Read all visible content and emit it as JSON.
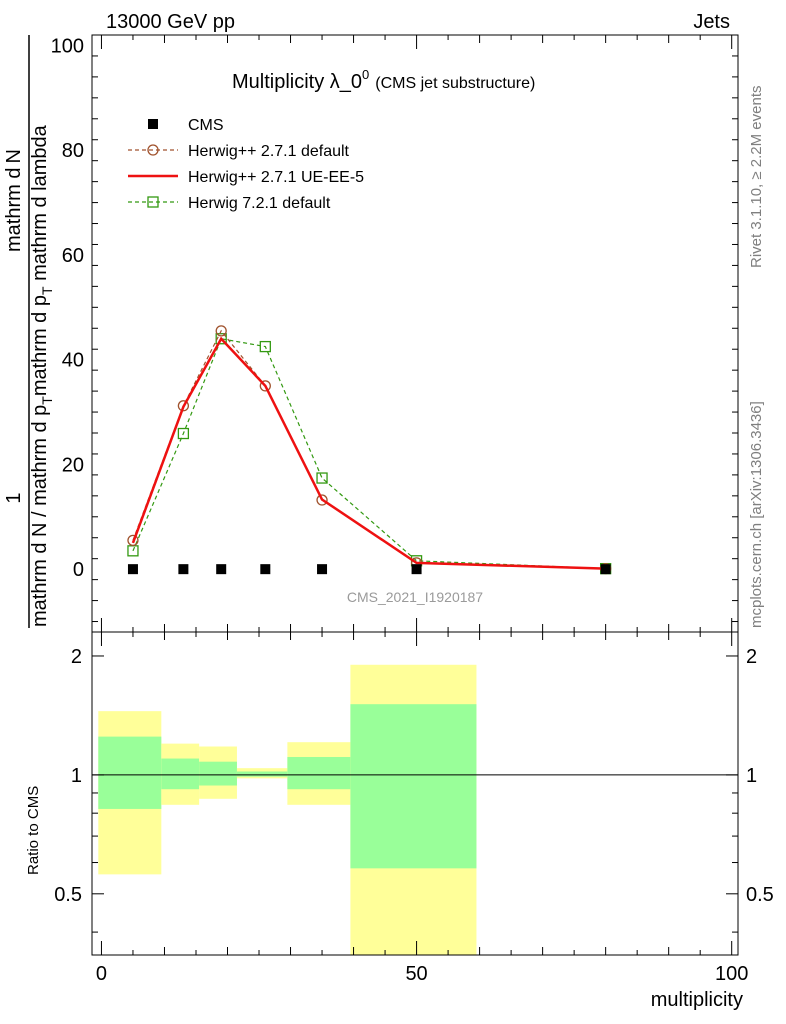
{
  "header": {
    "left": "13000 GeV pp",
    "right": "Jets"
  },
  "side_text": {
    "rivet": "Rivet 3.1.10, ≥ 2.2M events",
    "mcplots": "mcplots.cern.ch [arXiv:1306.3436]"
  },
  "watermark": "CMS_2021_I1920187",
  "chart_data": [
    {
      "type": "line",
      "title": "Multiplicity λ_0",
      "title_superscript": "0",
      "subtitle": "(CMS jet substructure)",
      "ylabel_numerator": "1",
      "ylabel_denominator": "mathrm d N / mathrm d p",
      "ylabel_denominator_sub": "T",
      "ylabel_denominator_tail": "mathrm d p",
      "ylabel_denominator_tail_sub": "T",
      "ylabel_numerator_top": "mathrm d",
      "ylabel_numerator_tail": "N",
      "ylabel_mid": "mathrm d p",
      "ylabel_mid_sub": "T",
      "ylabel_mid_tail": " mathrm d lambda",
      "xlim": [
        -1.5,
        101
      ],
      "ylim": [
        -12,
        102
      ],
      "yticks": [
        0,
        20,
        40,
        60,
        80,
        100
      ],
      "legend_position": "top-left",
      "series": [
        {
          "name": "CMS",
          "color": "#000000",
          "marker": "square-filled",
          "x": [
            5,
            13,
            19,
            26,
            35,
            50,
            80
          ],
          "y": [
            0,
            0,
            0,
            0,
            0,
            0,
            0
          ]
        },
        {
          "name": "Herwig++ 2.7.1 default",
          "color": "#a0522d",
          "marker": "circle-open",
          "dash": true,
          "x": [
            5,
            13,
            19,
            26,
            35,
            50,
            80
          ],
          "y": [
            5.5,
            31.2,
            45.5,
            35.0,
            13.2,
            1.2,
            0.1
          ]
        },
        {
          "name": "Herwig++ 2.7.1 UE-EE-5",
          "color": "#ee1111",
          "marker": "none",
          "dash": false,
          "x": [
            5,
            13,
            19,
            26,
            35,
            50,
            80
          ],
          "y": [
            5.0,
            31.0,
            44.0,
            35.0,
            13.3,
            1.2,
            0.1
          ]
        },
        {
          "name": "Herwig 7.2.1 default",
          "color": "#339911",
          "marker": "square-open",
          "dash": true,
          "x": [
            5,
            13,
            19,
            26,
            35,
            50,
            80
          ],
          "y": [
            3.5,
            25.9,
            44.0,
            42.5,
            17.4,
            1.6,
            0.1
          ]
        }
      ]
    },
    {
      "type": "area",
      "ylabel": "Ratio to CMS",
      "xlabel": "multiplicity",
      "xlim": [
        -1.5,
        101
      ],
      "ylim": [
        0.35,
        2.3
      ],
      "yticks": [
        0.5,
        1,
        2
      ],
      "ytick_labels": [
        "0.5",
        "1",
        "2"
      ],
      "xticks": [
        0,
        50,
        100
      ],
      "reference_line": 1,
      "bands": [
        {
          "x0": -0.5,
          "x1": 9.5,
          "yellow": [
            0.56,
            1.45
          ],
          "green": [
            0.82,
            1.25
          ]
        },
        {
          "x0": 9.5,
          "x1": 15.5,
          "yellow": [
            0.84,
            1.2
          ],
          "green": [
            0.92,
            1.1
          ]
        },
        {
          "x0": 15.5,
          "x1": 21.5,
          "yellow": [
            0.87,
            1.18
          ],
          "green": [
            0.94,
            1.08
          ]
        },
        {
          "x0": 21.5,
          "x1": 29.5,
          "yellow": [
            0.98,
            1.04
          ],
          "green": [
            0.99,
            1.02
          ]
        },
        {
          "x0": 29.5,
          "x1": 39.5,
          "yellow": [
            0.84,
            1.21
          ],
          "green": [
            0.92,
            1.11
          ]
        },
        {
          "x0": 39.5,
          "x1": 59.5,
          "yellow": [
            0.3,
            1.9
          ],
          "green": [
            0.58,
            1.51
          ]
        }
      ]
    }
  ]
}
